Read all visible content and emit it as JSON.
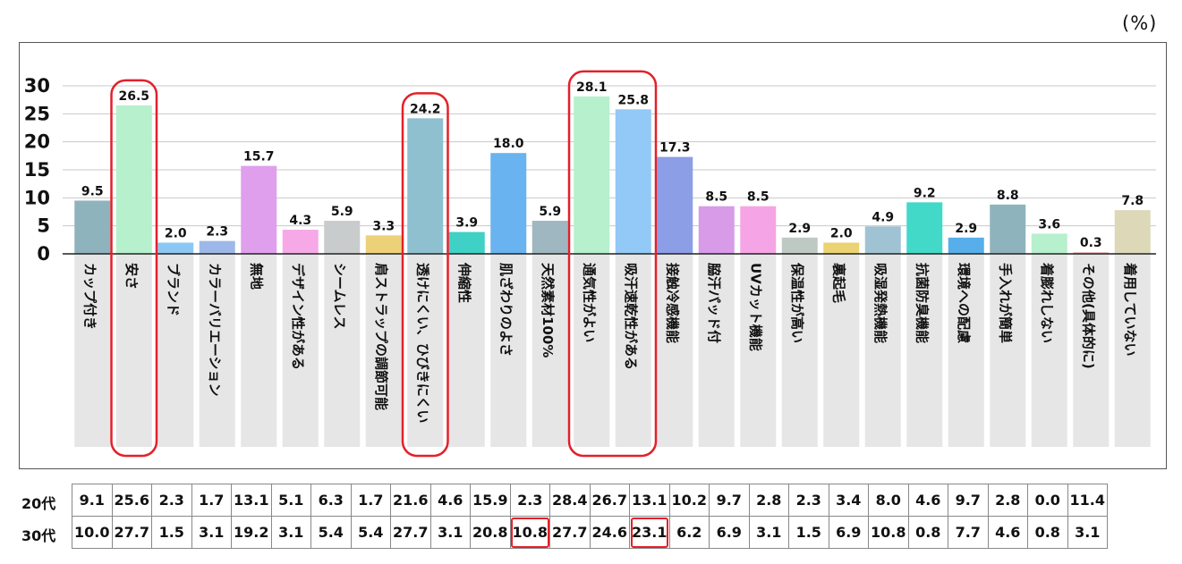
{
  "unit_label": "(%)",
  "chart_data": {
    "type": "bar",
    "ylim": [
      0,
      30
    ],
    "yticks": [
      0,
      5,
      10,
      15,
      20,
      25,
      30
    ],
    "grid": true,
    "categories": [
      "カップ付き",
      "安さ",
      "ブランド",
      "カラーバリエーション",
      "無地",
      "デザイン性がある",
      "シームレス",
      "肩ストラップの調節可能",
      "透けにくい、ひびきにくい",
      "伸縮性",
      "肌ざわりのよさ",
      "天然素材100%",
      "通気性がよい",
      "吸汗速乾性がある",
      "接触冷感機能",
      "脇汗パッド付",
      "UVカット機能",
      "保温性が高い",
      "裏起毛",
      "吸湿発熱機能",
      "抗菌防臭機能",
      "環境への配慮",
      "手入れが簡単",
      "着膨れしない",
      "その他(具体的に)",
      "着用していない"
    ],
    "values": [
      9.5,
      26.5,
      2.0,
      2.3,
      15.7,
      4.3,
      5.9,
      3.3,
      24.2,
      3.9,
      18.0,
      5.9,
      28.1,
      25.8,
      17.3,
      8.5,
      8.5,
      2.9,
      2.0,
      4.9,
      9.2,
      2.9,
      8.8,
      3.6,
      0.3,
      7.8
    ],
    "value_labels": [
      "9.5",
      "26.5",
      "2.0",
      "2.3",
      "15.7",
      "4.3",
      "5.9",
      "3.3",
      "24.2",
      "3.9",
      "18.0",
      "5.9",
      "28.1",
      "25.8",
      "17.3",
      "8.5",
      "8.5",
      "2.9",
      "2.0",
      "4.9",
      "9.2",
      "2.9",
      "8.8",
      "3.6",
      "0.3",
      "7.8"
    ],
    "colors": [
      "#8fb3bc",
      "#b6f0cc",
      "#8cc7f3",
      "#9db8e8",
      "#e09fed",
      "#f6a9e6",
      "#c9cccc",
      "#ecd178",
      "#8fc0d0",
      "#3fd1c6",
      "#69b3f0",
      "#9fb7c0",
      "#b6f0cc",
      "#92c9f6",
      "#8c9ee6",
      "#d79be8",
      "#f5a5e5",
      "#bfc9c4",
      "#ebd272",
      "#9fc3d2",
      "#42d9c9",
      "#57aeea",
      "#8fb3bc",
      "#b6f0cc",
      "#e9b3b3",
      "#dcd8b8"
    ],
    "highlight_groups": [
      [
        1
      ],
      [
        8
      ],
      [
        12,
        13
      ]
    ],
    "highlight_color": "#e3202a"
  },
  "table": {
    "rows": [
      {
        "label": "20代",
        "values": [
          "9.1",
          "25.6",
          "2.3",
          "1.7",
          "13.1",
          "5.1",
          "6.3",
          "1.7",
          "21.6",
          "4.6",
          "15.9",
          "2.3",
          "28.4",
          "26.7",
          "13.1",
          "10.2",
          "9.7",
          "2.8",
          "2.3",
          "3.4",
          "8.0",
          "4.6",
          "9.7",
          "2.8",
          "0.0",
          "11.4"
        ]
      },
      {
        "label": "30代",
        "values": [
          "10.0",
          "27.7",
          "1.5",
          "3.1",
          "19.2",
          "3.1",
          "5.4",
          "5.4",
          "27.7",
          "3.1",
          "20.8",
          "10.8",
          "27.7",
          "24.6",
          "23.1",
          "6.2",
          "6.9",
          "3.1",
          "1.5",
          "6.9",
          "10.8",
          "0.8",
          "7.7",
          "4.6",
          "0.8",
          "3.1"
        ]
      }
    ],
    "highlighted_cells": [
      [
        1,
        11
      ],
      [
        1,
        14
      ]
    ]
  }
}
